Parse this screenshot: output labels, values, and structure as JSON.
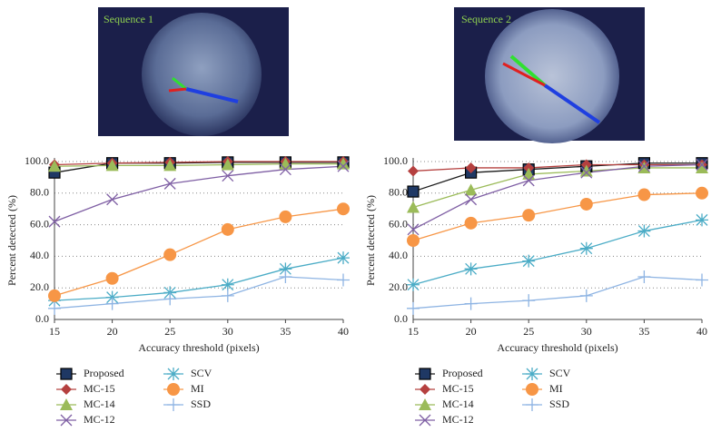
{
  "images": [
    {
      "label": "Sequence 1"
    },
    {
      "label": "Sequence 2"
    }
  ],
  "chart_data": [
    {
      "type": "line",
      "xlabel": "Accuracy threshold (pixels)",
      "ylabel": "Percent detected (%)",
      "x": [
        15,
        20,
        25,
        30,
        35,
        40
      ],
      "xlim": [
        15,
        40
      ],
      "xticks": [
        15,
        20,
        25,
        30,
        35,
        40
      ],
      "ylim": [
        0,
        100
      ],
      "yticks": [
        {
          "value": 0,
          "label": "0.0"
        },
        {
          "value": 20,
          "label": "20.0"
        },
        {
          "value": 40,
          "label": "40.0"
        },
        {
          "value": 60,
          "label": "60.0"
        },
        {
          "value": 80,
          "label": "80.0"
        },
        {
          "value": 100,
          "label": "100.0"
        }
      ],
      "grid": true,
      "series": [
        {
          "name": "Proposed",
          "color": "#1a1a1a",
          "marker": "square",
          "values": [
            93,
            99,
            99,
            99.5,
            99.5,
            99.5
          ]
        },
        {
          "name": "MC-15",
          "color": "#b5403f",
          "marker": "diamond",
          "values": [
            98,
            99,
            99.5,
            100,
            100,
            100
          ]
        },
        {
          "name": "MC-14",
          "color": "#9bbb59",
          "marker": "triangle",
          "values": [
            97,
            97.5,
            97.5,
            98,
            98.5,
            98.5
          ]
        },
        {
          "name": "MC-12",
          "color": "#7f5fa4",
          "marker": "x",
          "values": [
            62,
            76,
            86,
            91,
            95,
            97
          ]
        },
        {
          "name": "SCV",
          "color": "#4bacc6",
          "marker": "asterisk",
          "values": [
            12,
            14,
            17,
            22,
            32,
            39
          ]
        },
        {
          "name": "MI",
          "color": "#f79646",
          "marker": "circle",
          "values": [
            15,
            26,
            41,
            57,
            65,
            70
          ]
        },
        {
          "name": "SSD",
          "color": "#8eb4e3",
          "marker": "plus",
          "values": [
            7,
            10,
            13,
            15,
            27,
            25
          ]
        }
      ]
    },
    {
      "type": "line",
      "xlabel": "Accuracy threshold (pixels)",
      "ylabel": "Percent detected (%)",
      "x": [
        15,
        20,
        25,
        30,
        35,
        40
      ],
      "xlim": [
        15,
        40
      ],
      "xticks": [
        15,
        20,
        25,
        30,
        35,
        40
      ],
      "ylim": [
        0,
        100
      ],
      "yticks": [
        {
          "value": 0,
          "label": "0.0"
        },
        {
          "value": 20,
          "label": "20.0"
        },
        {
          "value": 40,
          "label": "40.0"
        },
        {
          "value": 60,
          "label": "60.0"
        },
        {
          "value": 80,
          "label": "80.0"
        },
        {
          "value": 100,
          "label": "100.0"
        }
      ],
      "grid": true,
      "series": [
        {
          "name": "Proposed",
          "color": "#1a1a1a",
          "marker": "square",
          "values": [
            81,
            93,
            95,
            97,
            99,
            99
          ]
        },
        {
          "name": "MC-15",
          "color": "#b5403f",
          "marker": "diamond",
          "values": [
            94,
            96,
            96,
            98,
            98,
            98
          ]
        },
        {
          "name": "MC-14",
          "color": "#9bbb59",
          "marker": "triangle",
          "values": [
            71,
            82,
            92,
            94,
            96,
            96
          ]
        },
        {
          "name": "MC-12",
          "color": "#7f5fa4",
          "marker": "x",
          "values": [
            57,
            76,
            88,
            93,
            97,
            98
          ]
        },
        {
          "name": "SCV",
          "color": "#4bacc6",
          "marker": "asterisk",
          "values": [
            22,
            32,
            37,
            45,
            56,
            63
          ]
        },
        {
          "name": "MI",
          "color": "#f79646",
          "marker": "circle",
          "values": [
            50,
            61,
            66,
            73,
            79,
            80
          ]
        },
        {
          "name": "SSD",
          "color": "#8eb4e3",
          "marker": "plus",
          "values": [
            7,
            10,
            12,
            15,
            27,
            25
          ]
        }
      ]
    }
  ]
}
